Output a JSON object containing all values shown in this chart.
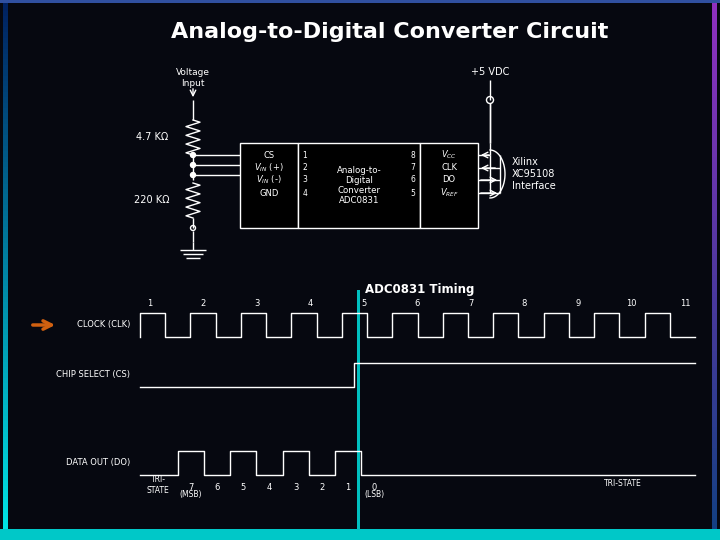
{
  "title": "Analog-to-Digital Converter Circuit",
  "bg_color": "#060810",
  "title_color": "#ffffff",
  "title_fontsize": 16,
  "circuit_color": "#ffffff",
  "timing_title": "ADC0831 Timing",
  "orange_arrow_color": "#d06010",
  "left_border_color_top": "#5060a0",
  "left_border_color_bot": "#00e8e8",
  "right_border_color_top": "#9040c0",
  "right_border_color_bot": "#4060c0",
  "bottom_bar_color": "#00c8c8",
  "center_line_color": "#00c8c8",
  "r1_label": "4.7 KΩ",
  "r2_label": "220 KΩ",
  "vcc_label": "+5 VDC",
  "voltage_input_label": "Voltage\nInput",
  "xilinx_lines": [
    "Xilinx",
    "XC95108",
    "Interface"
  ],
  "chip_lines": [
    "Analog-to-",
    "Digital",
    "Converter",
    "ADC0831"
  ],
  "left_pin_labels": [
    "CS",
    "VIN (+)",
    "VIN (-)",
    "GND"
  ],
  "right_pin_labels": [
    "VCC",
    "CLK",
    "DO",
    "VREF"
  ],
  "left_pin_nums": [
    "1",
    "2",
    "3",
    "4"
  ],
  "right_pin_nums": [
    "8",
    "7",
    "6",
    "5"
  ],
  "clock_label": "CLOCK (CLK)",
  "cs_label": "CHIP SELECT (CS)",
  "do_label": "DATA OUT (DO)",
  "tri_state_l": "TRI-\nSTATE",
  "tri_state_r": "TRI-STATE",
  "timing_nums": [
    "1",
    "2",
    "3",
    "4",
    "5",
    "6",
    "7",
    "8",
    "9",
    "10",
    "11"
  ],
  "data_bits": [
    "7",
    "6",
    "5",
    "4",
    "3",
    "2",
    "1",
    "0"
  ],
  "msb_label": "(MSB)",
  "lsb_label": "(LSB)"
}
